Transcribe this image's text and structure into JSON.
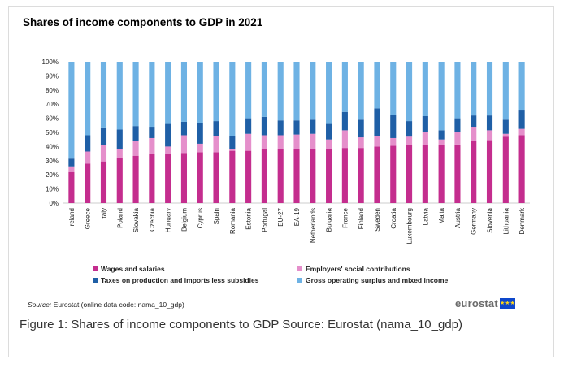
{
  "chart_data": {
    "type": "bar",
    "stacked": true,
    "title": "Shares of income components to GDP in 2021",
    "xlabel": "",
    "ylabel": "",
    "ylim": [
      0,
      100
    ],
    "y_ticks": [
      "0%",
      "10%",
      "20%",
      "30%",
      "40%",
      "50%",
      "60%",
      "70%",
      "80%",
      "90%",
      "100%"
    ],
    "grid": false,
    "legend_position": "bottom",
    "categories": [
      "Ireland",
      "Greece",
      "Italy",
      "Poland",
      "Slovakia",
      "Czechia",
      "Hungary",
      "Belgium",
      "Cyprus",
      "Spain",
      "Romania",
      "Estonia",
      "Portugal",
      "EU-27",
      "EA-19",
      "Netherlands",
      "Bulgaria",
      "France",
      "Finland",
      "Sweden",
      "Croatia",
      "Luxembourg",
      "Latvia",
      "Malta",
      "Austria",
      "Germany",
      "Slovenia",
      "Lithuania",
      "Denmark"
    ],
    "series": [
      {
        "name": "Wages and salaries",
        "color": "#c42d8e",
        "values": [
          22,
          28,
          29.5,
          32,
          33.5,
          34.5,
          35,
          35.5,
          36,
          36,
          37,
          37,
          38,
          38,
          38,
          38,
          38.5,
          39,
          39,
          40,
          40.5,
          41,
          41,
          41,
          41.5,
          44,
          44.5,
          47,
          48
        ]
      },
      {
        "name": "Employers' social contributions",
        "color": "#e58fcb",
        "values": [
          4,
          8.5,
          11.5,
          6.5,
          10.5,
          11.5,
          5,
          12.5,
          6,
          11.5,
          1.5,
          12,
          10,
          10,
          10.5,
          11,
          6.5,
          12.5,
          7.5,
          7.5,
          5.5,
          6,
          9,
          4,
          9,
          10,
          7,
          2,
          4.5
        ]
      },
      {
        "name": "Taxes on production and imports less subsidies",
        "color": "#1f5fa6",
        "values": [
          5.5,
          11.5,
          12.5,
          13.5,
          10.5,
          8,
          16,
          9.5,
          14.5,
          10.5,
          9,
          11,
          13,
          10.5,
          10,
          10,
          11,
          13,
          12.5,
          19.5,
          16.5,
          11,
          11.5,
          6.5,
          9.5,
          8,
          10.5,
          10,
          13
        ]
      },
      {
        "name": "Gross operating surplus and mixed income",
        "color": "#6eb2e4",
        "values": [
          68.5,
          52,
          46.5,
          48,
          45.5,
          46,
          44,
          42.5,
          43.5,
          42,
          52.5,
          40,
          39,
          41.5,
          41.5,
          41,
          44,
          35.5,
          41,
          33,
          37.5,
          42,
          38.5,
          48.5,
          40,
          38,
          38,
          41,
          34.5
        ]
      }
    ]
  },
  "legend": [
    {
      "label": "Wages and salaries",
      "color": "#c42d8e"
    },
    {
      "label": "Employers' social contributions",
      "color": "#e58fcb"
    },
    {
      "label": "Taxes on production and imports less subsidies",
      "color": "#1f5fa6"
    },
    {
      "label": "Gross operating surplus and mixed income",
      "color": "#6eb2e4"
    }
  ],
  "source": {
    "label": "Source:",
    "text": " Eurostat (online data code: nama_10_gdp)"
  },
  "brand": {
    "name": "eurostat",
    "flag_stars": "★★★"
  },
  "caption": "Figure 1: Shares of income components to GDP Source: Eurostat (nama_10_gdp)"
}
